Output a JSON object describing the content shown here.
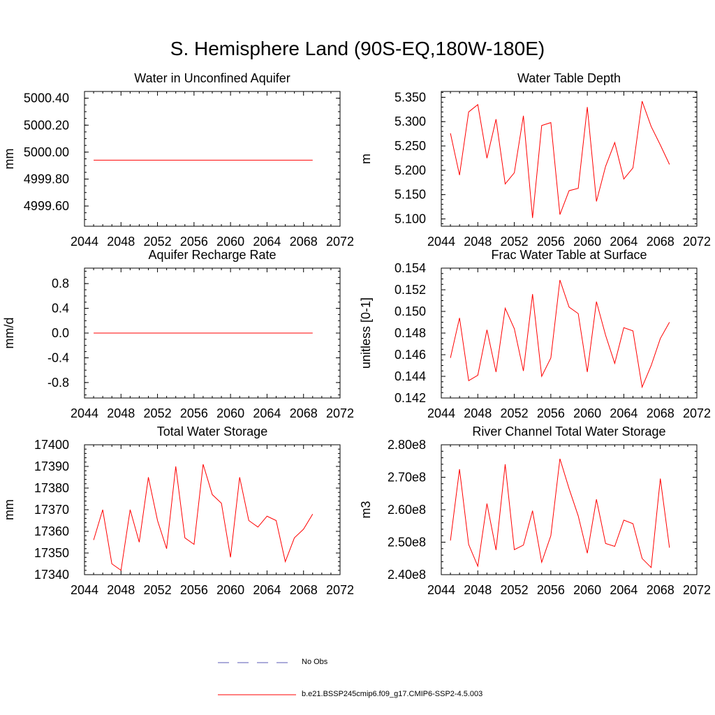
{
  "page": {
    "title": "S. Hemisphere Land (90S-EQ,180W-180E)"
  },
  "colors": {
    "model": "#ff0000",
    "obs": "#5a5ab4",
    "axis": "#000000"
  },
  "legend": {
    "obs_label": "No Obs",
    "model_label": "b.e21.BSSP245cmip6.f09_g17.CMIP6-SSP2-4.5.003"
  },
  "chart_data": [
    {
      "id": "water-unconfined-aquifer",
      "type": "line",
      "title": "Water in Unconfined Aquifer",
      "xlabel": "",
      "ylabel": "mm",
      "xlim": [
        2044,
        2072
      ],
      "ylim": [
        4999.45,
        5000.45
      ],
      "xticks": [
        2044,
        2048,
        2052,
        2056,
        2060,
        2064,
        2068,
        2072
      ],
      "xtick_labels": [
        "2044",
        "2048",
        "2052",
        "2056",
        "2060",
        "2064",
        "2068",
        "2072"
      ],
      "yticks": [
        4999.6,
        4999.8,
        5000.0,
        5000.2,
        5000.4
      ],
      "ytick_labels": [
        "4999.60",
        "4999.80",
        "5000.00",
        "5000.20",
        "5000.40"
      ],
      "yminor": 0.05,
      "x": [
        2045,
        2046,
        2047,
        2048,
        2049,
        2050,
        2051,
        2052,
        2053,
        2054,
        2055,
        2056,
        2057,
        2058,
        2059,
        2060,
        2061,
        2062,
        2063,
        2064,
        2065,
        2066,
        2067,
        2068,
        2069
      ],
      "values": [
        4999.94,
        4999.94,
        4999.94,
        4999.94,
        4999.94,
        4999.94,
        4999.94,
        4999.94,
        4999.94,
        4999.94,
        4999.94,
        4999.94,
        4999.94,
        4999.94,
        4999.94,
        4999.94,
        4999.94,
        4999.94,
        4999.94,
        4999.94,
        4999.94,
        4999.94,
        4999.94,
        4999.94,
        4999.94
      ]
    },
    {
      "id": "water-table-depth",
      "type": "line",
      "title": "Water Table Depth",
      "xlabel": "",
      "ylabel": "m",
      "xlim": [
        2044,
        2072
      ],
      "ylim": [
        5.085,
        5.362
      ],
      "xticks": [
        2044,
        2048,
        2052,
        2056,
        2060,
        2064,
        2068,
        2072
      ],
      "xtick_labels": [
        "2044",
        "2048",
        "2052",
        "2056",
        "2060",
        "2064",
        "2068",
        "2072"
      ],
      "yticks": [
        5.1,
        5.15,
        5.2,
        5.25,
        5.3,
        5.35
      ],
      "ytick_labels": [
        "5.100",
        "5.150",
        "5.200",
        "5.250",
        "5.300",
        "5.350"
      ],
      "yminor": 0.01,
      "x": [
        2045,
        2046,
        2047,
        2048,
        2049,
        2050,
        2051,
        2052,
        2053,
        2054,
        2055,
        2056,
        2057,
        2058,
        2059,
        2060,
        2061,
        2062,
        2063,
        2064,
        2065,
        2066,
        2067,
        2068,
        2069
      ],
      "values": [
        5.276,
        5.19,
        5.32,
        5.335,
        5.225,
        5.305,
        5.172,
        5.195,
        5.312,
        5.102,
        5.292,
        5.298,
        5.109,
        5.158,
        5.163,
        5.33,
        5.136,
        5.208,
        5.257,
        5.182,
        5.205,
        5.342,
        5.29,
        5.252,
        5.212
      ]
    },
    {
      "id": "aquifer-recharge-rate",
      "type": "line",
      "title": "Aquifer Recharge Rate",
      "xlabel": "",
      "ylabel": "mm/d",
      "xlim": [
        2044,
        2072
      ],
      "ylim": [
        -1.05,
        1.05
      ],
      "xticks": [
        2044,
        2048,
        2052,
        2056,
        2060,
        2064,
        2068,
        2072
      ],
      "xtick_labels": [
        "2044",
        "2048",
        "2052",
        "2056",
        "2060",
        "2064",
        "2068",
        "2072"
      ],
      "yticks": [
        -0.8,
        -0.4,
        0.0,
        0.4,
        0.8
      ],
      "ytick_labels": [
        "-0.8",
        "-0.4",
        "0.0",
        "0.4",
        "0.8"
      ],
      "yminor": 0.1,
      "x": [
        2045,
        2046,
        2047,
        2048,
        2049,
        2050,
        2051,
        2052,
        2053,
        2054,
        2055,
        2056,
        2057,
        2058,
        2059,
        2060,
        2061,
        2062,
        2063,
        2064,
        2065,
        2066,
        2067,
        2068,
        2069
      ],
      "values": [
        0,
        0,
        0,
        0,
        0,
        0,
        0,
        0,
        0,
        0,
        0,
        0,
        0,
        0,
        0,
        0,
        0,
        0,
        0,
        0,
        0,
        0,
        0,
        0,
        0
      ]
    },
    {
      "id": "frac-water-table-surface",
      "type": "line",
      "title": "Frac Water Table at Surface",
      "xlabel": "",
      "ylabel": "unitless [0-1]",
      "xlim": [
        2044,
        2072
      ],
      "ylim": [
        0.142,
        0.154
      ],
      "xticks": [
        2044,
        2048,
        2052,
        2056,
        2060,
        2064,
        2068,
        2072
      ],
      "xtick_labels": [
        "2044",
        "2048",
        "2052",
        "2056",
        "2060",
        "2064",
        "2068",
        "2072"
      ],
      "yticks": [
        0.142,
        0.144,
        0.146,
        0.148,
        0.15,
        0.152,
        0.154
      ],
      "ytick_labels": [
        "0.142",
        "0.144",
        "0.146",
        "0.148",
        "0.150",
        "0.152",
        "0.154"
      ],
      "yminor": 0.0005,
      "x": [
        2045,
        2046,
        2047,
        2048,
        2049,
        2050,
        2051,
        2052,
        2053,
        2054,
        2055,
        2056,
        2057,
        2058,
        2059,
        2060,
        2061,
        2062,
        2063,
        2064,
        2065,
        2066,
        2067,
        2068,
        2069
      ],
      "values": [
        0.1457,
        0.1494,
        0.1436,
        0.1441,
        0.1483,
        0.1444,
        0.1503,
        0.1484,
        0.1445,
        0.1516,
        0.144,
        0.1457,
        0.1529,
        0.1504,
        0.1498,
        0.1444,
        0.1509,
        0.1478,
        0.1452,
        0.1485,
        0.1482,
        0.143,
        0.145,
        0.1475,
        0.149
      ]
    },
    {
      "id": "total-water-storage",
      "type": "line",
      "title": "Total Water Storage",
      "xlabel": "",
      "ylabel": "mm",
      "xlim": [
        2044,
        2072
      ],
      "ylim": [
        17340,
        17400
      ],
      "xticks": [
        2044,
        2048,
        2052,
        2056,
        2060,
        2064,
        2068,
        2072
      ],
      "xtick_labels": [
        "2044",
        "2048",
        "2052",
        "2056",
        "2060",
        "2064",
        "2068",
        "2072"
      ],
      "yticks": [
        17340,
        17350,
        17360,
        17370,
        17380,
        17390,
        17400
      ],
      "ytick_labels": [
        "17340",
        "17350",
        "17360",
        "17370",
        "17380",
        "17390",
        "17400"
      ],
      "yminor": 2,
      "x": [
        2045,
        2046,
        2047,
        2048,
        2049,
        2050,
        2051,
        2052,
        2053,
        2054,
        2055,
        2056,
        2057,
        2058,
        2059,
        2060,
        2061,
        2062,
        2063,
        2064,
        2065,
        2066,
        2067,
        2068,
        2069
      ],
      "values": [
        17356,
        17370,
        17345,
        17342,
        17370,
        17355,
        17385,
        17365,
        17352,
        17390,
        17357,
        17354,
        17391,
        17377,
        17373,
        17348,
        17385,
        17365,
        17362,
        17367,
        17365,
        17346,
        17357,
        17361,
        17368
      ]
    },
    {
      "id": "river-channel-storage",
      "type": "line",
      "title": "River Channel Total Water Storage",
      "xlabel": "",
      "ylabel": "m3",
      "xlim": [
        2044,
        2072
      ],
      "ylim": [
        240000000,
        280000000
      ],
      "xticks": [
        2044,
        2048,
        2052,
        2056,
        2060,
        2064,
        2068,
        2072
      ],
      "xtick_labels": [
        "2044",
        "2048",
        "2052",
        "2056",
        "2060",
        "2064",
        "2068",
        "2072"
      ],
      "yticks": [
        240000000,
        250000000,
        260000000,
        270000000,
        280000000
      ],
      "ytick_labels": [
        "2.40e8",
        "2.50e8",
        "2.60e8",
        "2.70e8",
        "2.80e8"
      ],
      "yminor": 2000000,
      "x": [
        2045,
        2046,
        2047,
        2048,
        2049,
        2050,
        2051,
        2052,
        2053,
        2054,
        2055,
        2056,
        2057,
        2058,
        2059,
        2060,
        2061,
        2062,
        2063,
        2064,
        2065,
        2066,
        2067,
        2068,
        2069
      ],
      "values": [
        250500000,
        272500000,
        249300000,
        242600000,
        261900000,
        247600000,
        274000000,
        247700000,
        249100000,
        259700000,
        243800000,
        252000000,
        275700000,
        266500000,
        258100000,
        246600000,
        263200000,
        249600000,
        248700000,
        256800000,
        255700000,
        245000000,
        242200000,
        269600000,
        248300000
      ]
    }
  ]
}
